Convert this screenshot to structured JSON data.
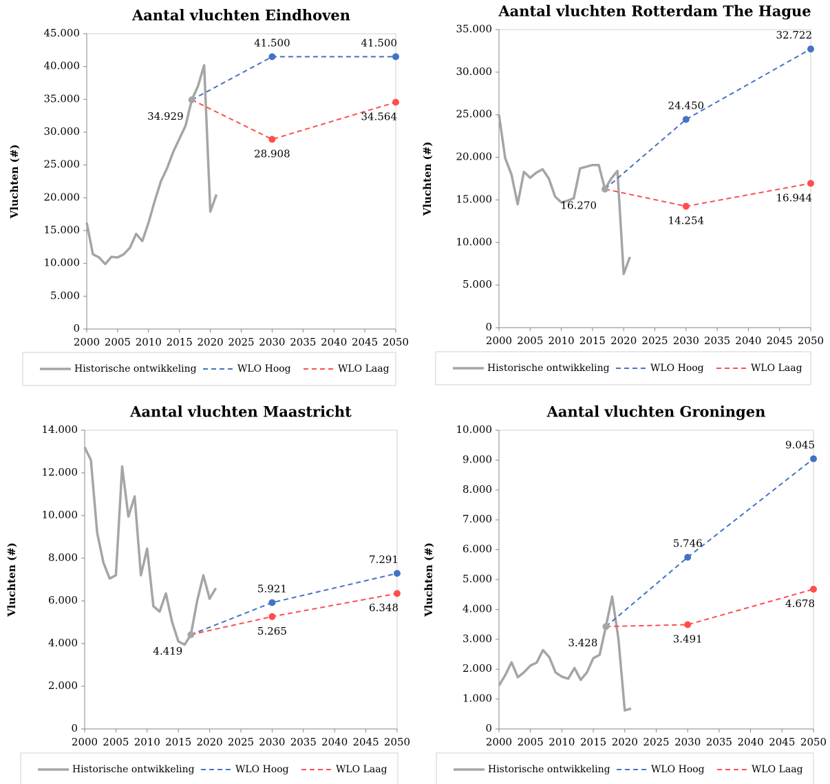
{
  "chart_data": [
    {
      "type": "line",
      "title": "Aantal vluchten Eindhoven",
      "ylabel": "Vluchten (#)",
      "xlim": [
        2000,
        2050
      ],
      "xticks": [
        2000,
        2005,
        2010,
        2015,
        2020,
        2025,
        2030,
        2035,
        2040,
        2045,
        2050
      ],
      "ylim": [
        0,
        45000
      ],
      "yticks": [
        0,
        {
          "value": 5000,
          "label": "5.000"
        },
        {
          "value": 10000,
          "label": "10.000"
        },
        {
          "value": 15000,
          "label": "15.000"
        },
        {
          "value": 20000,
          "label": "20.000"
        },
        {
          "value": 25000,
          "label": "25.000"
        },
        {
          "value": 30000,
          "label": "30.000"
        },
        {
          "value": 35000,
          "label": "35.000"
        },
        {
          "value": 40000,
          "label": "40.000"
        },
        {
          "value": 45000,
          "label": "45.000"
        }
      ],
      "legend": "bottom",
      "series": [
        {
          "name": "Historische ontwikkeling",
          "color": "#a5a5a5",
          "style": "solid",
          "x": [
            2000,
            2001,
            2002,
            2003,
            2004,
            2005,
            2006,
            2007,
            2008,
            2009,
            2010,
            2011,
            2012,
            2013,
            2014,
            2015,
            2016,
            2017,
            2018,
            2019,
            2020,
            2021
          ],
          "values": [
            16200,
            11400,
            10900,
            9900,
            11000,
            10900,
            11400,
            12400,
            14500,
            13400,
            16200,
            19500,
            22500,
            24500,
            27000,
            29000,
            31000,
            34929,
            37000,
            40200,
            17900,
            20500
          ],
          "value_labels": [
            null,
            null,
            null,
            null,
            null,
            null,
            null,
            null,
            null,
            null,
            null,
            null,
            null,
            null,
            null,
            null,
            null,
            "34.929",
            null,
            null,
            null,
            null
          ]
        },
        {
          "name": "WLO Hoog",
          "color": "#4472c4",
          "style": "dashed",
          "x": [
            2017,
            2030,
            2050
          ],
          "values": [
            34929,
            41500,
            41500
          ],
          "value_labels": [
            null,
            "41.500",
            "41.500"
          ]
        },
        {
          "name": "WLO Laag",
          "color": "#ff4d4d",
          "style": "dashed",
          "x": [
            2017,
            2030,
            2050
          ],
          "values": [
            34929,
            28908,
            34564
          ],
          "value_labels": [
            null,
            "28.908",
            "34.564"
          ]
        }
      ]
    },
    {
      "type": "line",
      "title": "Aantal vluchten Rotterdam The Hague",
      "ylabel": "Vluchten (#)",
      "xlim": [
        2000,
        2050
      ],
      "xticks": [
        2000,
        2005,
        2010,
        2015,
        2020,
        2025,
        2030,
        2035,
        2040,
        2045,
        2050
      ],
      "ylim": [
        0,
        35000
      ],
      "yticks": [
        0,
        {
          "value": 5000,
          "label": "5.000"
        },
        {
          "value": 10000,
          "label": "10.000"
        },
        {
          "value": 15000,
          "label": "15.000"
        },
        {
          "value": 20000,
          "label": "20.000"
        },
        {
          "value": 25000,
          "label": "25.000"
        },
        {
          "value": 30000,
          "label": "30.000"
        },
        {
          "value": 35000,
          "label": "35.000"
        }
      ],
      "legend": "bottom",
      "series": [
        {
          "name": "Historische ontwikkeling",
          "color": "#a5a5a5",
          "style": "solid",
          "x": [
            2000,
            2001,
            2002,
            2003,
            2004,
            2005,
            2006,
            2007,
            2008,
            2009,
            2010,
            2011,
            2012,
            2013,
            2014,
            2015,
            2016,
            2017,
            2018,
            2019,
            2020,
            2021
          ],
          "values": [
            25000,
            19900,
            18000,
            14500,
            18300,
            17600,
            18200,
            18600,
            17500,
            15400,
            14700,
            14900,
            15200,
            18700,
            18900,
            19100,
            19100,
            16270,
            17500,
            18400,
            6300,
            8300
          ],
          "value_labels": [
            null,
            null,
            null,
            null,
            null,
            null,
            null,
            null,
            null,
            null,
            null,
            null,
            null,
            null,
            null,
            null,
            null,
            "16.270",
            null,
            null,
            null,
            null
          ]
        },
        {
          "name": "WLO Hoog",
          "color": "#4472c4",
          "style": "dashed",
          "x": [
            2017,
            2030,
            2050
          ],
          "values": [
            16270,
            24450,
            32722
          ],
          "value_labels": [
            null,
            "24.450",
            "32.722"
          ]
        },
        {
          "name": "WLO Laag",
          "color": "#ff4d4d",
          "style": "dashed",
          "x": [
            2017,
            2030,
            2050
          ],
          "values": [
            16270,
            14254,
            16944
          ],
          "value_labels": [
            null,
            "14.254",
            "16.944"
          ]
        }
      ]
    },
    {
      "type": "line",
      "title": "Aantal vluchten Maastricht",
      "ylabel": "Vluchten (#)",
      "xlim": [
        2000,
        2050
      ],
      "xticks": [
        2000,
        2005,
        2010,
        2015,
        2020,
        2025,
        2030,
        2035,
        2040,
        2045,
        2050
      ],
      "ylim": [
        0,
        14000
      ],
      "yticks": [
        0,
        {
          "value": 2000,
          "label": "2.000"
        },
        {
          "value": 4000,
          "label": "4.000"
        },
        {
          "value": 6000,
          "label": "6.000"
        },
        {
          "value": 8000,
          "label": "8.000"
        },
        {
          "value": 10000,
          "label": "10.000"
        },
        {
          "value": 12000,
          "label": "12.000"
        },
        {
          "value": 14000,
          "label": "14.000"
        }
      ],
      "legend": "bottom",
      "series": [
        {
          "name": "Historische ontwikkeling",
          "color": "#a5a5a5",
          "style": "solid",
          "x": [
            2000,
            2001,
            2002,
            2003,
            2004,
            2005,
            2006,
            2007,
            2008,
            2009,
            2010,
            2011,
            2012,
            2013,
            2014,
            2015,
            2016,
            2017,
            2018,
            2019,
            2020,
            2021
          ],
          "values": [
            13200,
            12600,
            9200,
            7800,
            7050,
            7200,
            12300,
            9950,
            10900,
            7200,
            8450,
            5750,
            5500,
            6350,
            5000,
            4100,
            3950,
            4419,
            6000,
            7200,
            6100,
            6600
          ],
          "value_labels": [
            null,
            null,
            null,
            null,
            null,
            null,
            null,
            null,
            null,
            null,
            null,
            null,
            null,
            null,
            null,
            null,
            null,
            "4.419",
            null,
            null,
            null,
            null
          ]
        },
        {
          "name": "WLO Hoog",
          "color": "#4472c4",
          "style": "dashed",
          "x": [
            2017,
            2030,
            2050
          ],
          "values": [
            4419,
            5921,
            7291
          ],
          "value_labels": [
            null,
            "5.921",
            "7.291"
          ]
        },
        {
          "name": "WLO Laag",
          "color": "#ff4d4d",
          "style": "dashed",
          "x": [
            2017,
            2030,
            2050
          ],
          "values": [
            4419,
            5265,
            6348
          ],
          "value_labels": [
            null,
            "5.265",
            "6.348"
          ]
        }
      ]
    },
    {
      "type": "line",
      "title": "Aantal vluchten Groningen",
      "ylabel": "Vluchten (#)",
      "xlim": [
        2000,
        2050
      ],
      "xticks": [
        2000,
        2005,
        2010,
        2015,
        2020,
        2025,
        2030,
        2035,
        2040,
        2045,
        2050
      ],
      "ylim": [
        0,
        10000
      ],
      "yticks": [
        0,
        {
          "value": 1000,
          "label": "1.000"
        },
        {
          "value": 2000,
          "label": "2.000"
        },
        {
          "value": 3000,
          "label": "3.000"
        },
        {
          "value": 4000,
          "label": "4.000"
        },
        {
          "value": 5000,
          "label": "5.000"
        },
        {
          "value": 6000,
          "label": "6.000"
        },
        {
          "value": 7000,
          "label": "7.000"
        },
        {
          "value": 8000,
          "label": "8.000"
        },
        {
          "value": 9000,
          "label": "9.000"
        },
        {
          "value": 10000,
          "label": "10.000"
        }
      ],
      "legend": "bottom",
      "series": [
        {
          "name": "Historische ontwikkeling",
          "color": "#a5a5a5",
          "style": "solid",
          "x": [
            2000,
            2001,
            2002,
            2003,
            2004,
            2005,
            2006,
            2007,
            2008,
            2009,
            2010,
            2011,
            2012,
            2013,
            2014,
            2015,
            2016,
            2017,
            2018,
            2019,
            2020,
            2021
          ],
          "values": [
            1450,
            1800,
            2230,
            1730,
            1900,
            2120,
            2220,
            2640,
            2400,
            1890,
            1750,
            1680,
            2040,
            1640,
            1900,
            2370,
            2480,
            3428,
            4430,
            3000,
            620,
            680
          ],
          "value_labels": [
            null,
            null,
            null,
            null,
            null,
            null,
            null,
            null,
            null,
            null,
            null,
            null,
            null,
            null,
            null,
            null,
            null,
            "3.428",
            null,
            null,
            null,
            null
          ]
        },
        {
          "name": "WLO Hoog",
          "color": "#4472c4",
          "style": "dashed",
          "x": [
            2017,
            2030,
            2050
          ],
          "values": [
            3428,
            5746,
            9045
          ],
          "value_labels": [
            null,
            "5.746",
            "9.045"
          ]
        },
        {
          "name": "WLO Laag",
          "color": "#ff4d4d",
          "style": "dashed",
          "x": [
            2017,
            2030,
            2050
          ],
          "values": [
            3428,
            3491,
            4678
          ],
          "value_labels": [
            null,
            "3.491",
            "4.678"
          ]
        }
      ]
    }
  ]
}
